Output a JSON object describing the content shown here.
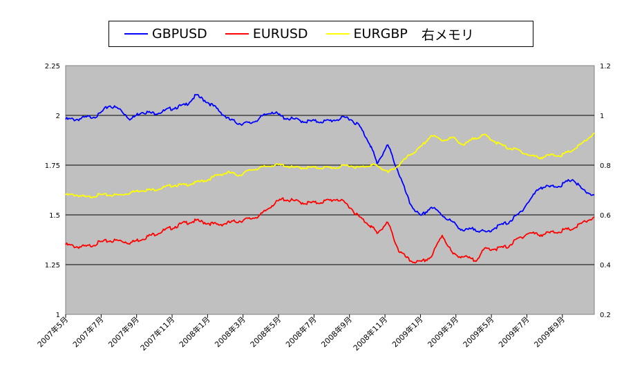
{
  "chart_data": {
    "type": "line",
    "legend": {
      "position": "top",
      "note": "右メモリ"
    },
    "x_tick_labels": [
      "2007年5月",
      "2007年7月",
      "2007年9月",
      "2007年11月",
      "2008年1月",
      "2008年3月",
      "2008年5月",
      "2008年7月",
      "2008年9月",
      "2008年11月",
      "2009年1月",
      "2009年3月",
      "2009年5月",
      "2009年7月",
      "2009年9月"
    ],
    "y_left": {
      "ticks": [
        1,
        1.25,
        1.5,
        1.75,
        2,
        2.25
      ],
      "labels": [
        "1",
        "1.25",
        "1.5",
        "1.75",
        "2",
        "2.25"
      ],
      "ylim": [
        1,
        2.25
      ]
    },
    "y_right": {
      "ticks": [
        0.2,
        0.4,
        0.6,
        0.8,
        1,
        1.2
      ],
      "labels": [
        "0.2",
        "0.4",
        "0.6",
        "0.8",
        "1",
        "1.2"
      ],
      "ylim": [
        0.2,
        1.2
      ]
    },
    "grid": true,
    "plot_background": "#c0c0c0",
    "x_range_months": [
      0,
      14.6
    ],
    "series": [
      {
        "name": "GBPUSD",
        "axis": "left",
        "color": "#0000ff",
        "x": [
          0,
          0.3,
          0.6,
          0.9,
          1.2,
          1.5,
          1.8,
          2.1,
          2.4,
          2.7,
          3.0,
          3.3,
          3.6,
          3.9,
          4.2,
          4.5,
          4.8,
          5.1,
          5.4,
          5.7,
          6.0,
          6.3,
          6.6,
          6.9,
          7.2,
          7.5,
          7.8,
          8.1,
          8.4,
          8.6,
          8.9,
          9.2,
          9.5,
          9.8,
          10.1,
          10.4,
          10.7,
          11.0,
          11.3,
          11.6,
          11.9,
          12.2,
          12.5,
          12.8,
          13.1,
          13.4,
          13.7,
          14.0,
          14.3,
          14.6
        ],
        "values": [
          1.98,
          1.98,
          1.99,
          2.0,
          2.05,
          2.03,
          1.98,
          2.02,
          2.01,
          2.02,
          2.04,
          2.05,
          2.1,
          2.07,
          2.03,
          1.98,
          1.96,
          1.96,
          1.99,
          2.02,
          1.99,
          1.98,
          1.97,
          1.97,
          1.97,
          1.98,
          1.99,
          1.95,
          1.86,
          1.76,
          1.85,
          1.71,
          1.56,
          1.49,
          1.54,
          1.5,
          1.46,
          1.42,
          1.43,
          1.41,
          1.44,
          1.46,
          1.5,
          1.57,
          1.64,
          1.64,
          1.65,
          1.68,
          1.62,
          1.6
        ]
      },
      {
        "name": "EURUSD",
        "axis": "left",
        "color": "#ff0000",
        "x": [
          0,
          0.3,
          0.6,
          0.9,
          1.2,
          1.5,
          1.8,
          2.1,
          2.4,
          2.7,
          3.0,
          3.3,
          3.6,
          3.9,
          4.2,
          4.5,
          4.8,
          5.1,
          5.4,
          5.7,
          6.0,
          6.3,
          6.6,
          6.9,
          7.2,
          7.5,
          7.8,
          8.1,
          8.4,
          8.6,
          8.9,
          9.2,
          9.5,
          9.8,
          10.1,
          10.4,
          10.7,
          11.0,
          11.3,
          11.6,
          11.9,
          12.2,
          12.5,
          12.8,
          13.1,
          13.4,
          13.7,
          14.0,
          14.3,
          14.6
        ],
        "values": [
          1.35,
          1.34,
          1.34,
          1.36,
          1.37,
          1.37,
          1.36,
          1.38,
          1.4,
          1.42,
          1.44,
          1.46,
          1.47,
          1.46,
          1.45,
          1.46,
          1.47,
          1.48,
          1.5,
          1.55,
          1.58,
          1.57,
          1.56,
          1.56,
          1.57,
          1.58,
          1.55,
          1.49,
          1.45,
          1.41,
          1.46,
          1.32,
          1.27,
          1.26,
          1.29,
          1.4,
          1.3,
          1.29,
          1.27,
          1.33,
          1.33,
          1.34,
          1.38,
          1.41,
          1.4,
          1.41,
          1.42,
          1.43,
          1.46,
          1.49
        ]
      },
      {
        "name": "EURGBP",
        "axis": "right",
        "color": "#ffff00",
        "x": [
          0,
          0.3,
          0.6,
          0.9,
          1.2,
          1.5,
          1.8,
          2.1,
          2.4,
          2.7,
          3.0,
          3.3,
          3.6,
          3.9,
          4.2,
          4.5,
          4.8,
          5.1,
          5.4,
          5.7,
          6.0,
          6.3,
          6.6,
          6.9,
          7.2,
          7.5,
          7.8,
          8.1,
          8.4,
          8.6,
          8.9,
          9.2,
          9.5,
          9.8,
          10.1,
          10.4,
          10.7,
          11.0,
          11.3,
          11.6,
          11.9,
          12.2,
          12.5,
          12.8,
          13.1,
          13.4,
          13.7,
          14.0,
          14.3,
          14.6
        ],
        "values": [
          0.68,
          0.68,
          0.67,
          0.68,
          0.68,
          0.68,
          0.69,
          0.7,
          0.7,
          0.71,
          0.72,
          0.72,
          0.73,
          0.74,
          0.76,
          0.77,
          0.76,
          0.78,
          0.79,
          0.8,
          0.8,
          0.79,
          0.79,
          0.79,
          0.79,
          0.79,
          0.8,
          0.79,
          0.8,
          0.8,
          0.77,
          0.8,
          0.84,
          0.87,
          0.92,
          0.9,
          0.91,
          0.88,
          0.91,
          0.92,
          0.89,
          0.87,
          0.86,
          0.84,
          0.83,
          0.84,
          0.84,
          0.86,
          0.89,
          0.93
        ]
      }
    ]
  }
}
